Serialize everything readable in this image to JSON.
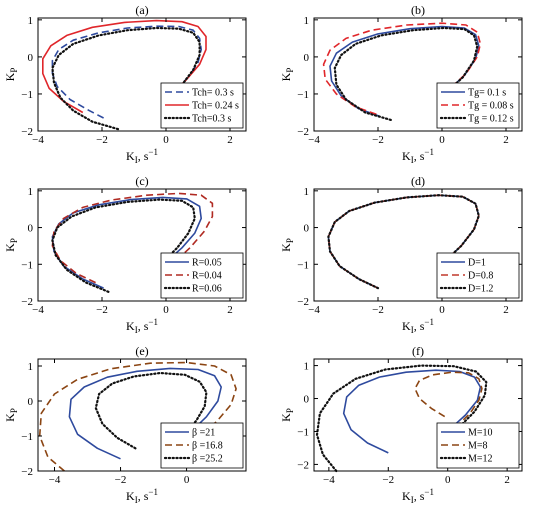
{
  "chart_data": [
    {
      "type": "line",
      "title": "(a)",
      "xlabel": "K_I, s^-1",
      "ylabel": "K_P",
      "xlim": [
        -4,
        2.5
      ],
      "ylim": [
        -2,
        1.05
      ],
      "xticks": [
        -4,
        -2,
        0,
        2
      ],
      "yticks": [
        -2,
        -1,
        0,
        1
      ],
      "legend_position": "bottom-right",
      "series": [
        {
          "name": "Tch= 0.3 s",
          "color": "#2e4a9e",
          "dash": "dashed",
          "x": [
            -1.95,
            -2.4,
            -3.0,
            -3.4,
            -3.55,
            -3.55,
            -3.35,
            -2.9,
            -2.1,
            -1.2,
            -0.3,
            0.4,
            0.85,
            1.05,
            1.1,
            1.0,
            0.7,
            0.2
          ],
          "y": [
            -1.65,
            -1.45,
            -1.15,
            -0.8,
            -0.45,
            -0.1,
            0.2,
            0.45,
            0.65,
            0.78,
            0.83,
            0.82,
            0.72,
            0.5,
            0.2,
            -0.15,
            -0.55,
            -0.95
          ]
        },
        {
          "name": "Tch= 0.24 s",
          "color": "#e0262a",
          "dash": "solid",
          "x": [
            -2.6,
            -3.2,
            -3.65,
            -3.85,
            -3.85,
            -3.6,
            -3.1,
            -2.3,
            -1.3,
            -0.3,
            0.5,
            1.0,
            1.25,
            1.25,
            1.05,
            0.6,
            0.1
          ],
          "y": [
            -1.5,
            -1.2,
            -0.85,
            -0.45,
            -0.05,
            0.3,
            0.58,
            0.8,
            0.93,
            0.98,
            0.95,
            0.82,
            0.55,
            0.2,
            -0.2,
            -0.65,
            -1.05
          ]
        },
        {
          "name": "Tch=0.3 s",
          "color": "#111111",
          "dash": "dotted",
          "x": [
            -1.5,
            -2.3,
            -2.9,
            -3.3,
            -3.5,
            -3.55,
            -3.35,
            -2.9,
            -2.1,
            -1.2,
            -0.3,
            0.4,
            0.85,
            1.05,
            1.05,
            0.85,
            0.5,
            0.15
          ],
          "y": [
            -1.95,
            -1.75,
            -1.45,
            -1.1,
            -0.7,
            -0.3,
            0.05,
            0.35,
            0.58,
            0.72,
            0.78,
            0.76,
            0.65,
            0.4,
            0.05,
            -0.35,
            -0.75,
            -1.1
          ]
        }
      ]
    },
    {
      "type": "line",
      "title": "(b)",
      "xlabel": "K_I, s^-1",
      "ylabel": "K_P",
      "xlim": [
        -4,
        2.5
      ],
      "ylim": [
        -2,
        1.05
      ],
      "xticks": [
        -4,
        -2,
        0,
        2
      ],
      "yticks": [
        -2,
        -1,
        0,
        1
      ],
      "legend_position": "bottom-right",
      "series": [
        {
          "name": "Tg= 0.1 s",
          "color": "#2e4a9e",
          "dash": "solid",
          "x": [
            -1.95,
            -2.6,
            -3.15,
            -3.45,
            -3.5,
            -3.3,
            -2.8,
            -2.0,
            -1.0,
            0.0,
            0.7,
            1.05,
            1.15,
            1.05,
            0.7,
            0.2
          ],
          "y": [
            -1.6,
            -1.4,
            -1.05,
            -0.65,
            -0.25,
            0.1,
            0.4,
            0.62,
            0.76,
            0.82,
            0.78,
            0.6,
            0.3,
            -0.05,
            -0.5,
            -0.9
          ]
        },
        {
          "name": "Tg = 0.08 s",
          "color": "#e0262a",
          "dash": "dashed",
          "x": [
            -2.05,
            -2.7,
            -3.3,
            -3.65,
            -3.7,
            -3.5,
            -3.0,
            -2.2,
            -1.1,
            0.0,
            0.75,
            1.1,
            1.2,
            1.1,
            0.75,
            0.25
          ],
          "y": [
            -1.55,
            -1.35,
            -1.0,
            -0.6,
            -0.2,
            0.18,
            0.5,
            0.72,
            0.86,
            0.91,
            0.86,
            0.67,
            0.35,
            0.0,
            -0.45,
            -0.85
          ]
        },
        {
          "name": "Tg = 0.12 s",
          "color": "#111111",
          "dash": "dotted",
          "x": [
            -1.6,
            -2.4,
            -3.0,
            -3.3,
            -3.35,
            -3.15,
            -2.7,
            -1.9,
            -0.9,
            0.05,
            0.7,
            1.0,
            1.1,
            1.0,
            0.65,
            0.15
          ],
          "y": [
            -1.7,
            -1.5,
            -1.15,
            -0.75,
            -0.3,
            0.05,
            0.35,
            0.58,
            0.72,
            0.78,
            0.75,
            0.58,
            0.28,
            -0.1,
            -0.55,
            -0.95
          ]
        }
      ]
    },
    {
      "type": "line",
      "title": "(c)",
      "xlabel": "K_I, s^-1",
      "ylabel": "K_P",
      "xlim": [
        -4,
        2.5
      ],
      "ylim": [
        -2,
        1.05
      ],
      "xticks": [
        -4,
        -2,
        0,
        2
      ],
      "yticks": [
        -2,
        -1,
        0,
        1
      ],
      "legend_position": "bottom-right",
      "series": [
        {
          "name": "R=0.05",
          "color": "#2e4a9e",
          "dash": "solid",
          "x": [
            -1.95,
            -2.6,
            -3.2,
            -3.5,
            -3.55,
            -3.35,
            -2.9,
            -2.1,
            -1.1,
            -0.1,
            0.65,
            1.05,
            1.1,
            0.9,
            0.5,
            0.05
          ],
          "y": [
            -1.65,
            -1.4,
            -1.05,
            -0.65,
            -0.25,
            0.1,
            0.4,
            0.62,
            0.76,
            0.82,
            0.78,
            0.58,
            0.25,
            -0.15,
            -0.55,
            -0.9
          ]
        },
        {
          "name": "R=0.04",
          "color": "#b02a22",
          "dash": "dashed",
          "x": [
            -2.2,
            -2.8,
            -3.3,
            -3.55,
            -3.5,
            -3.2,
            -2.6,
            -1.7,
            -0.6,
            0.4,
            1.1,
            1.45,
            1.45,
            1.2,
            0.75,
            0.25
          ],
          "y": [
            -1.5,
            -1.25,
            -0.9,
            -0.5,
            -0.1,
            0.25,
            0.55,
            0.75,
            0.88,
            0.93,
            0.88,
            0.66,
            0.3,
            -0.1,
            -0.55,
            -0.95
          ]
        },
        {
          "name": "R=0.06",
          "color": "#111111",
          "dash": "dotted",
          "x": [
            -1.8,
            -2.5,
            -3.1,
            -3.45,
            -3.55,
            -3.4,
            -2.95,
            -2.2,
            -1.2,
            -0.2,
            0.5,
            0.85,
            0.9,
            0.7,
            0.35,
            -0.05
          ],
          "y": [
            -1.75,
            -1.5,
            -1.15,
            -0.75,
            -0.35,
            0.0,
            0.3,
            0.55,
            0.7,
            0.76,
            0.73,
            0.55,
            0.25,
            -0.15,
            -0.55,
            -0.9
          ]
        }
      ]
    },
    {
      "type": "line",
      "title": "(d)",
      "xlabel": "K_I, s^-1",
      "ylabel": "K_P",
      "xlim": [
        -4,
        2.5
      ],
      "ylim": [
        -2,
        1.05
      ],
      "xticks": [
        -4,
        -2,
        0,
        2
      ],
      "yticks": [
        -2,
        -1,
        0,
        1
      ],
      "legend_position": "bottom-right",
      "series": [
        {
          "name": "D=1",
          "color": "#2e4a9e",
          "dash": "solid",
          "x": [
            -2.0,
            -2.6,
            -3.2,
            -3.5,
            -3.55,
            -3.35,
            -2.9,
            -2.1,
            -1.1,
            -0.1,
            0.65,
            1.05,
            1.15,
            1.0,
            0.6,
            0.05
          ],
          "y": [
            -1.65,
            -1.4,
            -1.05,
            -0.65,
            -0.25,
            0.15,
            0.45,
            0.68,
            0.82,
            0.88,
            0.84,
            0.65,
            0.32,
            -0.05,
            -0.5,
            -0.95
          ]
        },
        {
          "name": "D=0.8",
          "color": "#c0392b",
          "dash": "dashed",
          "x": [
            -2.0,
            -2.6,
            -3.2,
            -3.5,
            -3.55,
            -3.35,
            -2.9,
            -2.1,
            -1.1,
            -0.1,
            0.65,
            1.05,
            1.15,
            1.0,
            0.6,
            0.05
          ],
          "y": [
            -1.65,
            -1.4,
            -1.05,
            -0.65,
            -0.25,
            0.15,
            0.45,
            0.68,
            0.82,
            0.88,
            0.84,
            0.65,
            0.32,
            -0.05,
            -0.5,
            -0.95
          ]
        },
        {
          "name": "D=1.2",
          "color": "#111111",
          "dash": "dotted",
          "x": [
            -2.0,
            -2.6,
            -3.2,
            -3.5,
            -3.55,
            -3.35,
            -2.9,
            -2.1,
            -1.1,
            -0.1,
            0.65,
            1.05,
            1.15,
            1.0,
            0.6,
            0.05
          ],
          "y": [
            -1.65,
            -1.4,
            -1.05,
            -0.65,
            -0.25,
            0.15,
            0.45,
            0.68,
            0.82,
            0.88,
            0.84,
            0.65,
            0.32,
            -0.05,
            -0.5,
            -0.95
          ]
        }
      ]
    },
    {
      "type": "line",
      "title": "(e)",
      "xlabel": "K_I, s^-1",
      "ylabel": "K_P",
      "xlim": [
        -4.5,
        1.8
      ],
      "ylim": [
        -2,
        1.2
      ],
      "xticks": [
        -4,
        -2,
        0
      ],
      "yticks": [
        -2,
        -1,
        0,
        1
      ],
      "legend_position": "bottom-right",
      "series": [
        {
          "name": "β =21",
          "color": "#2e4a9e",
          "dash": "solid",
          "x": [
            -2.0,
            -2.7,
            -3.3,
            -3.55,
            -3.5,
            -3.1,
            -2.4,
            -1.5,
            -0.5,
            0.35,
            0.85,
            1.05,
            0.95,
            0.6,
            0.05
          ],
          "y": [
            -1.65,
            -1.35,
            -0.95,
            -0.45,
            0.05,
            0.4,
            0.68,
            0.85,
            0.93,
            0.9,
            0.72,
            0.4,
            0.0,
            -0.45,
            -0.95
          ]
        },
        {
          "name": "β =16.8",
          "color": "#8b4513",
          "dash": "dashed",
          "x": [
            -3.7,
            -4.2,
            -4.45,
            -4.4,
            -4.0,
            -3.3,
            -2.3,
            -1.1,
            0.0,
            0.85,
            1.35,
            1.5,
            1.35,
            0.9,
            0.3
          ],
          "y": [
            -2.0,
            -1.6,
            -1.0,
            -0.35,
            0.2,
            0.62,
            0.92,
            1.08,
            1.1,
            1.0,
            0.75,
            0.35,
            -0.1,
            -0.6,
            -1.0
          ]
        },
        {
          "name": "β =25.2",
          "color": "#111111",
          "dash": "dotted",
          "x": [
            -1.55,
            -2.1,
            -2.55,
            -2.75,
            -2.65,
            -2.25,
            -1.6,
            -0.8,
            -0.05,
            0.4,
            0.6,
            0.55,
            0.3,
            0.0
          ],
          "y": [
            -1.35,
            -1.05,
            -0.65,
            -0.2,
            0.2,
            0.5,
            0.7,
            0.8,
            0.75,
            0.55,
            0.25,
            -0.15,
            -0.55,
            -0.9
          ]
        }
      ]
    },
    {
      "type": "line",
      "title": "(f)",
      "xlabel": "K_I, s^-1",
      "ylabel": "K_P",
      "xlim": [
        -4.5,
        2.5
      ],
      "ylim": [
        -2.2,
        1.2
      ],
      "xticks": [
        -4,
        -2,
        0,
        2
      ],
      "yticks": [
        -2,
        -1,
        0,
        1
      ],
      "legend_position": "bottom-right",
      "series": [
        {
          "name": "M=10",
          "color": "#2e4a9e",
          "dash": "solid",
          "x": [
            -2.0,
            -2.7,
            -3.25,
            -3.5,
            -3.4,
            -3.0,
            -2.3,
            -1.4,
            -0.4,
            0.4,
            0.9,
            1.1,
            1.0,
            0.6,
            0.05
          ],
          "y": [
            -1.65,
            -1.35,
            -0.95,
            -0.45,
            0.05,
            0.4,
            0.65,
            0.8,
            0.86,
            0.82,
            0.65,
            0.35,
            -0.05,
            -0.5,
            -0.95
          ]
        },
        {
          "name": "M=8",
          "color": "#8b4513",
          "dash": "dashed",
          "x": [
            -0.1,
            -0.55,
            -0.95,
            -1.1,
            -0.95,
            -0.5,
            0.15,
            0.7,
            1.05,
            1.15,
            1.05,
            0.75,
            0.35
          ],
          "y": [
            -0.55,
            -0.3,
            0.0,
            0.3,
            0.55,
            0.72,
            0.8,
            0.78,
            0.6,
            0.3,
            -0.05,
            -0.45,
            -0.8
          ]
        },
        {
          "name": "M=12",
          "color": "#111111",
          "dash": "dotted",
          "x": [
            -3.75,
            -4.2,
            -4.4,
            -4.3,
            -3.85,
            -3.1,
            -2.1,
            -0.9,
            0.2,
            0.95,
            1.3,
            1.25,
            0.9,
            0.35
          ],
          "y": [
            -2.2,
            -1.7,
            -1.1,
            -0.45,
            0.15,
            0.6,
            0.88,
            1.0,
            0.98,
            0.82,
            0.5,
            0.1,
            -0.4,
            -0.9
          ]
        }
      ]
    }
  ]
}
